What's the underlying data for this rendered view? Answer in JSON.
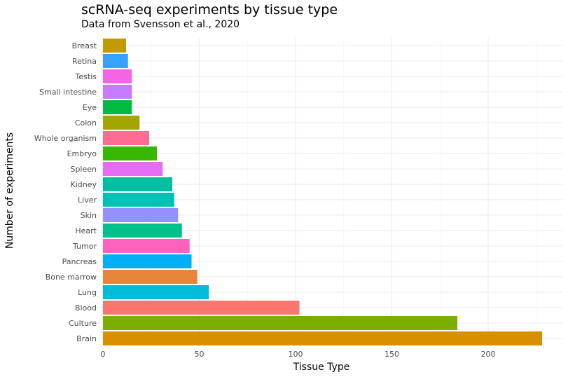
{
  "chart_data": {
    "type": "bar",
    "orientation": "horizontal",
    "title": "scRNA-seq experiments by tissue type",
    "subtitle": "Data from Svensson et al., 2020",
    "xlabel": "Tissue Type",
    "ylabel": "Number of experiments",
    "xlim": [
      0,
      230
    ],
    "xticks": [
      0,
      50,
      100,
      150,
      200
    ],
    "grid": true,
    "categories": [
      "Brain",
      "Culture",
      "Blood",
      "Lung",
      "Bone marrow",
      "Pancreas",
      "Tumor",
      "Heart",
      "Skin",
      "Liver",
      "Kidney",
      "Spleen",
      "Embryo",
      "Whole organism",
      "Colon",
      "Eye",
      "Small intestine",
      "Testis",
      "Retina",
      "Breast"
    ],
    "values": [
      228,
      184,
      102,
      55,
      49,
      46,
      45,
      41,
      39,
      37,
      36,
      31,
      28,
      24,
      19,
      15,
      15,
      15,
      13,
      12
    ],
    "colors": [
      "#D89000",
      "#7CAE00",
      "#F8766D",
      "#00BCD8",
      "#E8853A",
      "#00B0F6",
      "#FF62BC",
      "#00C08B",
      "#9590FF",
      "#00C1B5",
      "#00BFA0",
      "#E76BF3",
      "#39B600",
      "#FF6C91",
      "#A3A500",
      "#00BA42",
      "#C77CFF",
      "#F564E3",
      "#35A2FF",
      "#C59900"
    ]
  }
}
